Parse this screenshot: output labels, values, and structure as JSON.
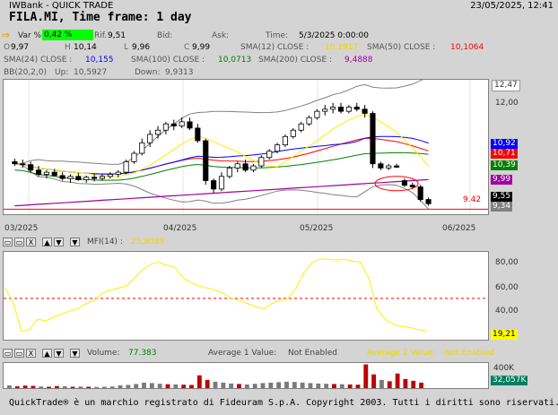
{
  "titlebar": {
    "app": "IWBank - QUICK TRADE",
    "datetime": "23/05/2025, 12:41"
  },
  "symbol": {
    "title": "FILA.MI, Time frame: 1 day"
  },
  "quote": {
    "var_label": "Var %",
    "var_value": "0,42 %",
    "ref_label": "Rif.",
    "ref_value": "9,51",
    "bid_label": "Bid:",
    "ask_label": "Ask:",
    "time_label": "Time:",
    "time_value": "5/3/2025 0:00:00",
    "o_label": "O",
    "o_value": "9,97",
    "h_label": "H",
    "h_value": "10,14",
    "l_label": "L",
    "l_value": "9,96",
    "c_label": "C",
    "c_value": "9,99"
  },
  "indicators": {
    "sma12_label": "SMA(12) CLOSE :",
    "sma12_value": "10,1917",
    "sma50_label": "SMA(50) CLOSE :",
    "sma50_value": "10,1064",
    "sma24_label": "SMA(24) CLOSE :",
    "sma24_value": "10,155",
    "sma100_label": "SMA(100) CLOSE :",
    "sma100_value": "10,0713",
    "sma200_label": "SMA(200) CLOSE :",
    "sma200_value": "9,4888",
    "bb_label": "BB(20,2,0)",
    "bb_up_label": "Up:",
    "bb_up_value": "10,5927",
    "bb_down_label": "Down:",
    "bb_down_value": "9,9313"
  },
  "price_axis": {
    "labels": [
      "12,47",
      "12,00"
    ],
    "tags": [
      "10,92",
      "10,71",
      "10,39",
      "9,99",
      "9,55",
      "9,34"
    ],
    "ref_line_label": "9.42"
  },
  "date_axis": {
    "labels": [
      "03/2025",
      "04/2025",
      "05/2025",
      "06/2025"
    ]
  },
  "mfi": {
    "label": "MFI(14) :",
    "value": "25,8089",
    "axis_labels": [
      "80,00",
      "60,00",
      "40,00"
    ],
    "last_tag": "19,21"
  },
  "volume": {
    "label": "Volume:",
    "value": "77.383",
    "avg1_label": "Average 1 Value:",
    "avg1_value": "Not Enabled",
    "avg2_label": "Average 2 Value:",
    "avg2_value": "Not Enabled",
    "axis_label": "400K",
    "last_tag": "32,057K"
  },
  "toolbar": {
    "minimize": "▭",
    "maximize": "▭",
    "close": "X",
    "up": "▲",
    "down": "▼"
  },
  "footer": {
    "text": "QuickTrade® è un marchio registrato di Fideuram S.p.A. Copyright 2003. Tutti i diritti sono riservati."
  },
  "colors": {
    "accent_green": "#00ff00",
    "sma12": "#ffee00",
    "sma50": "#ff0000",
    "sma24": "#0000ff",
    "sma100": "#008000",
    "sma200": "#a000a0",
    "bollinger": "#808080",
    "mfi": "#ffee00"
  },
  "icons": {
    "quote_arrow": "arrow-right-icon"
  },
  "chart_data": [
    {
      "type": "candlestick",
      "title": "FILA.MI, Time frame: 1 day",
      "x_labels": [
        "03/2025",
        "04/2025",
        "05/2025",
        "06/2025"
      ],
      "ylim": [
        9.3,
        12.5
      ],
      "reference_line": 9.42,
      "candles": [
        {
          "o": 10.55,
          "h": 10.62,
          "l": 10.45,
          "c": 10.5
        },
        {
          "o": 10.5,
          "h": 10.6,
          "l": 10.4,
          "c": 10.48
        },
        {
          "o": 10.48,
          "h": 10.55,
          "l": 10.3,
          "c": 10.35
        },
        {
          "o": 10.35,
          "h": 10.45,
          "l": 10.2,
          "c": 10.25
        },
        {
          "o": 10.25,
          "h": 10.35,
          "l": 10.15,
          "c": 10.3
        },
        {
          "o": 10.3,
          "h": 10.38,
          "l": 10.2,
          "c": 10.22
        },
        {
          "o": 10.22,
          "h": 10.3,
          "l": 10.1,
          "c": 10.15
        },
        {
          "o": 10.15,
          "h": 10.25,
          "l": 10.05,
          "c": 10.2
        },
        {
          "o": 10.2,
          "h": 10.28,
          "l": 10.1,
          "c": 10.12
        },
        {
          "o": 10.12,
          "h": 10.22,
          "l": 10.05,
          "c": 10.18
        },
        {
          "o": 10.18,
          "h": 10.25,
          "l": 10.08,
          "c": 10.15
        },
        {
          "o": 10.15,
          "h": 10.25,
          "l": 10.1,
          "c": 10.2
        },
        {
          "o": 10.2,
          "h": 10.3,
          "l": 10.15,
          "c": 10.25
        },
        {
          "o": 10.25,
          "h": 10.35,
          "l": 10.18,
          "c": 10.3
        },
        {
          "o": 10.3,
          "h": 10.6,
          "l": 10.25,
          "c": 10.55
        },
        {
          "o": 10.55,
          "h": 10.8,
          "l": 10.5,
          "c": 10.75
        },
        {
          "o": 10.75,
          "h": 11.1,
          "l": 10.7,
          "c": 11.0
        },
        {
          "o": 11.0,
          "h": 11.3,
          "l": 10.9,
          "c": 11.2
        },
        {
          "o": 11.2,
          "h": 11.4,
          "l": 11.1,
          "c": 11.3
        },
        {
          "o": 11.3,
          "h": 11.5,
          "l": 11.2,
          "c": 11.45
        },
        {
          "o": 11.45,
          "h": 11.55,
          "l": 11.3,
          "c": 11.4
        },
        {
          "o": 11.4,
          "h": 11.6,
          "l": 11.35,
          "c": 11.5
        },
        {
          "o": 11.5,
          "h": 11.6,
          "l": 11.3,
          "c": 11.35
        },
        {
          "o": 11.35,
          "h": 11.45,
          "l": 11.0,
          "c": 11.05
        },
        {
          "o": 11.05,
          "h": 11.1,
          "l": 10.0,
          "c": 10.1
        },
        {
          "o": 10.1,
          "h": 10.15,
          "l": 9.8,
          "c": 9.9
        },
        {
          "o": 9.9,
          "h": 10.3,
          "l": 9.85,
          "c": 10.2
        },
        {
          "o": 10.2,
          "h": 10.45,
          "l": 10.15,
          "c": 10.4
        },
        {
          "o": 10.4,
          "h": 10.55,
          "l": 10.3,
          "c": 10.5
        },
        {
          "o": 10.5,
          "h": 10.6,
          "l": 10.3,
          "c": 10.35
        },
        {
          "o": 10.35,
          "h": 10.5,
          "l": 10.3,
          "c": 10.45
        },
        {
          "o": 10.45,
          "h": 10.7,
          "l": 10.4,
          "c": 10.65
        },
        {
          "o": 10.65,
          "h": 10.85,
          "l": 10.6,
          "c": 10.8
        },
        {
          "o": 10.8,
          "h": 11.0,
          "l": 10.75,
          "c": 10.95
        },
        {
          "o": 10.95,
          "h": 11.2,
          "l": 10.9,
          "c": 11.15
        },
        {
          "o": 11.15,
          "h": 11.35,
          "l": 11.1,
          "c": 11.3
        },
        {
          "o": 11.3,
          "h": 11.5,
          "l": 11.25,
          "c": 11.45
        },
        {
          "o": 11.45,
          "h": 11.65,
          "l": 11.4,
          "c": 11.6
        },
        {
          "o": 11.6,
          "h": 11.8,
          "l": 11.55,
          "c": 11.75
        },
        {
          "o": 11.75,
          "h": 11.9,
          "l": 11.65,
          "c": 11.8
        },
        {
          "o": 11.8,
          "h": 11.95,
          "l": 11.7,
          "c": 11.85
        },
        {
          "o": 11.85,
          "h": 11.95,
          "l": 11.7,
          "c": 11.75
        },
        {
          "o": 11.75,
          "h": 11.9,
          "l": 11.7,
          "c": 11.85
        },
        {
          "o": 11.85,
          "h": 11.95,
          "l": 11.75,
          "c": 11.8
        },
        {
          "o": 11.8,
          "h": 11.9,
          "l": 11.6,
          "c": 11.7
        },
        {
          "o": 11.7,
          "h": 11.75,
          "l": 10.4,
          "c": 10.5
        },
        {
          "o": 10.5,
          "h": 10.55,
          "l": 10.35,
          "c": 10.4
        },
        {
          "o": 10.4,
          "h": 10.5,
          "l": 10.35,
          "c": 10.45
        },
        {
          "o": 10.45,
          "h": 10.5,
          "l": 10.4,
          "c": 10.42
        },
        {
          "o": 10.1,
          "h": 10.15,
          "l": 9.95,
          "c": 9.99
        },
        {
          "o": 9.99,
          "h": 10.05,
          "l": 9.9,
          "c": 9.95
        },
        {
          "o": 9.95,
          "h": 10.0,
          "l": 9.6,
          "c": 9.65
        },
        {
          "o": 9.65,
          "h": 9.7,
          "l": 9.5,
          "c": 9.55
        }
      ]
    },
    {
      "type": "line",
      "title": "MFI(14)",
      "ylim": [
        10,
        95
      ],
      "reference_line": 50,
      "values": [
        60,
        45,
        18,
        20,
        30,
        28,
        32,
        35,
        38,
        40,
        45,
        48,
        55,
        58,
        60,
        62,
        70,
        78,
        83,
        85,
        82,
        80,
        70,
        65,
        62,
        60,
        58,
        55,
        50,
        48,
        45,
        42,
        40,
        45,
        48,
        50,
        60,
        75,
        85,
        88,
        88,
        87,
        88,
        86,
        85,
        70,
        40,
        30,
        25,
        23,
        22,
        20,
        19
      ]
    },
    {
      "type": "bar",
      "title": "Volume",
      "values": [
        60,
        40,
        55,
        50,
        35,
        30,
        45,
        40,
        30,
        35,
        30,
        25,
        30,
        35,
        60,
        70,
        90,
        120,
        110,
        95,
        85,
        80,
        75,
        70,
        280,
        180,
        140,
        120,
        100,
        90,
        80,
        95,
        110,
        120,
        130,
        140,
        135,
        120,
        110,
        100,
        95,
        90,
        85,
        80,
        75,
        520,
        300,
        180,
        150,
        320,
        200,
        160,
        120
      ]
    }
  ]
}
